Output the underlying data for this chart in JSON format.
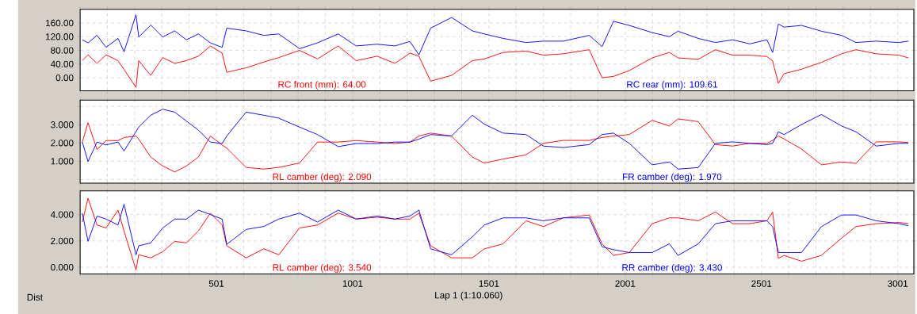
{
  "chart_data": [
    {
      "type": "line",
      "tick_labels": "y",
      "grid": true,
      "x": [
        9,
        30,
        63,
        96,
        140,
        162,
        206,
        216,
        260,
        304,
        348,
        391,
        435,
        479,
        522,
        539,
        610,
        675,
        730,
        806,
        872,
        948,
        1014,
        1091,
        1156,
        1211,
        1244,
        1287,
        1364,
        1440,
        1484,
        1553,
        1637,
        1701,
        1774,
        1869,
        1916,
        1958,
        2016,
        2100,
        2163,
        2195,
        2269,
        2332,
        2395,
        2458,
        2521,
        2542,
        2563,
        2584,
        2648,
        2721,
        2795,
        2848,
        2922,
        3006,
        3040
      ],
      "xlim": [
        1,
        3060
      ],
      "ylim": [
        -38,
        200
      ],
      "xticks": [
        {
          "value": 1,
          "label": null
        },
        {
          "value": 101,
          "label": null
        },
        {
          "value": 201,
          "label": null
        },
        {
          "value": 301,
          "label": null
        },
        {
          "value": 401,
          "label": null
        },
        501,
        {
          "value": 601,
          "label": null
        },
        {
          "value": 701,
          "label": null
        },
        {
          "value": 801,
          "label": null
        },
        {
          "value": 901,
          "label": null
        },
        1001,
        {
          "value": 1101,
          "label": null
        },
        {
          "value": 1201,
          "label": null
        },
        {
          "value": 1301,
          "label": null
        },
        {
          "value": 1401,
          "label": null
        },
        1501,
        {
          "value": 1601,
          "label": null
        },
        {
          "value": 1701,
          "label": null
        },
        {
          "value": 1801,
          "label": null
        },
        {
          "value": 1901,
          "label": null
        },
        2001,
        {
          "value": 2101,
          "label": null
        },
        {
          "value": 2201,
          "label": null
        },
        {
          "value": 2301,
          "label": null
        },
        {
          "value": 2401,
          "label": null
        },
        2501,
        {
          "value": 2601,
          "label": null
        },
        {
          "value": 2701,
          "label": null
        },
        {
          "value": 2801,
          "label": null
        },
        {
          "value": 2901,
          "label": null
        },
        3001
      ],
      "yticks": [
        {
          "value": 0,
          "label": "0.00"
        },
        {
          "value": 40,
          "label": "40.00"
        },
        {
          "value": 80,
          "label": "80.00"
        },
        {
          "value": 120,
          "label": "120.00"
        },
        {
          "value": 160,
          "label": "160.00"
        }
      ],
      "series": [
        {
          "name": "RC front (mm): 64.00",
          "color": "#ff0000",
          "values": [
            50,
            67,
            42,
            67,
            50,
            24,
            -28,
            50,
            7,
            59,
            42,
            50,
            63,
            93,
            72,
            16,
            29,
            46,
            59,
            80,
            55,
            93,
            50,
            63,
            42,
            72,
            63,
            -10,
            7,
            50,
            55,
            74,
            78,
            66,
            70,
            82,
            0,
            4,
            21,
            58,
            74,
            58,
            54,
            82,
            66,
            66,
            62,
            49,
            -16,
            12,
            25,
            45,
            70,
            82,
            70,
            66,
            58
          ]
        },
        {
          "name": "RC rear (mm): 109.61",
          "color": "#0000ff",
          "values": [
            111,
            102,
            124,
            89,
            115,
            76,
            184,
            119,
            154,
            119,
            137,
            111,
            128,
            102,
            89,
            145,
            137,
            124,
            128,
            85,
            102,
            128,
            93,
            98,
            93,
            106,
            67,
            145,
            176,
            137,
            128,
            115,
            103,
            107,
            107,
            124,
            91,
            165,
            153,
            132,
            120,
            136,
            115,
            103,
            111,
            99,
            111,
            74,
            157,
            148,
            153,
            136,
            124,
            103,
            107,
            103,
            107
          ]
        }
      ]
    },
    {
      "type": "line",
      "tick_labels": "y",
      "grid": true,
      "x": [
        9,
        30,
        63,
        96,
        140,
        162,
        206,
        216,
        260,
        304,
        348,
        391,
        435,
        479,
        522,
        539,
        610,
        675,
        730,
        806,
        872,
        948,
        1014,
        1091,
        1156,
        1211,
        1244,
        1287,
        1364,
        1440,
        1484,
        1553,
        1637,
        1701,
        1774,
        1869,
        1916,
        1958,
        2016,
        2100,
        2163,
        2195,
        2269,
        2332,
        2395,
        2458,
        2521,
        2542,
        2563,
        2584,
        2648,
        2721,
        2795,
        2848,
        2922,
        3006,
        3040
      ],
      "xlim": [
        1,
        3060
      ],
      "ylim": [
        -0.2,
        4.35
      ],
      "xticks": [
        {
          "value": 1,
          "label": null
        },
        {
          "value": 101,
          "label": null
        },
        {
          "value": 201,
          "label": null
        },
        {
          "value": 301,
          "label": null
        },
        {
          "value": 401,
          "label": null
        },
        501,
        {
          "value": 601,
          "label": null
        },
        {
          "value": 701,
          "label": null
        },
        {
          "value": 801,
          "label": null
        },
        {
          "value": 901,
          "label": null
        },
        1001,
        {
          "value": 1101,
          "label": null
        },
        {
          "value": 1201,
          "label": null
        },
        {
          "value": 1301,
          "label": null
        },
        {
          "value": 1401,
          "label": null
        },
        1501,
        {
          "value": 1601,
          "label": null
        },
        {
          "value": 1701,
          "label": null
        },
        {
          "value": 1801,
          "label": null
        },
        {
          "value": 1901,
          "label": null
        },
        2001,
        {
          "value": 2101,
          "label": null
        },
        {
          "value": 2201,
          "label": null
        },
        {
          "value": 2301,
          "label": null
        },
        {
          "value": 2401,
          "label": null
        },
        2501,
        {
          "value": 2601,
          "label": null
        },
        {
          "value": 2701,
          "label": null
        },
        {
          "value": 2801,
          "label": null
        },
        {
          "value": 2901,
          "label": null
        },
        3001
      ],
      "yticks": [
        {
          "value": 0,
          "label": null
        },
        {
          "value": 1,
          "label": "1.000"
        },
        {
          "value": 2,
          "label": "2.000"
        },
        {
          "value": 3,
          "label": "3.000"
        },
        {
          "value": 4,
          "label": null
        }
      ],
      "series": [
        {
          "name": "RL camber (deg): 2.090",
          "color": "#ff0000",
          "values": [
            2.05,
            3.11,
            1.64,
            2.13,
            2.13,
            2.3,
            2.38,
            2.21,
            1.23,
            0.74,
            0.41,
            0.74,
            1.23,
            2.38,
            1.89,
            1.72,
            0.66,
            0.57,
            0.66,
            0.9,
            2.05,
            2.05,
            2.13,
            2.05,
            1.97,
            2.05,
            2.38,
            2.54,
            2.38,
            1.23,
            0.9,
            1.12,
            1.35,
            1.98,
            2.14,
            2.14,
            2.3,
            2.38,
            2.46,
            3.24,
            2.93,
            3.32,
            3.17,
            1.91,
            1.83,
            1.98,
            1.98,
            2.14,
            2.38,
            2.22,
            1.67,
            0.8,
            0.96,
            0.88,
            2.06,
            2.06,
            2.02
          ]
        },
        {
          "name": "FR camber (deg): 1.970",
          "color": "#0000ff",
          "values": [
            2.05,
            0.98,
            2.05,
            1.89,
            2.05,
            1.56,
            2.62,
            2.87,
            3.52,
            3.85,
            3.69,
            3.2,
            2.7,
            2.05,
            1.97,
            2.38,
            3.69,
            3.52,
            3.36,
            2.87,
            2.46,
            1.8,
            1.97,
            1.97,
            2.05,
            2.05,
            2.21,
            2.46,
            2.38,
            3.52,
            3.03,
            2.54,
            2.46,
            1.83,
            1.75,
            1.91,
            2.46,
            2.54,
            1.98,
            0.8,
            0.96,
            0.57,
            0.65,
            1.98,
            2.06,
            1.98,
            1.91,
            1.98,
            2.61,
            2.46,
            3.01,
            3.56,
            2.93,
            2.61,
            1.83,
            1.98,
            1.98
          ]
        }
      ]
    },
    {
      "type": "line",
      "grid": true,
      "xlabel": "Lap 1 (1:10.060)",
      "annotations": [
        "Dist"
      ],
      "x": [
        9,
        30,
        63,
        96,
        140,
        162,
        206,
        216,
        260,
        304,
        348,
        391,
        435,
        479,
        522,
        539,
        610,
        675,
        730,
        806,
        872,
        948,
        1014,
        1091,
        1156,
        1211,
        1244,
        1287,
        1364,
        1440,
        1484,
        1553,
        1637,
        1701,
        1774,
        1869,
        1916,
        1958,
        2016,
        2100,
        2163,
        2195,
        2269,
        2332,
        2395,
        2458,
        2521,
        2542,
        2563,
        2584,
        2648,
        2721,
        2795,
        2848,
        2922,
        3006,
        3040
      ],
      "xlim": [
        1,
        3060
      ],
      "ylim": [
        -0.5,
        5.8
      ],
      "xticks": [
        {
          "value": 1,
          "label": null
        },
        {
          "value": 101,
          "label": null
        },
        {
          "value": 201,
          "label": null
        },
        {
          "value": 301,
          "label": null
        },
        {
          "value": 401,
          "label": null
        },
        501,
        {
          "value": 601,
          "label": null
        },
        {
          "value": 701,
          "label": null
        },
        {
          "value": 801,
          "label": null
        },
        {
          "value": 901,
          "label": null
        },
        1001,
        {
          "value": 1101,
          "label": null
        },
        {
          "value": 1201,
          "label": null
        },
        {
          "value": 1301,
          "label": null
        },
        {
          "value": 1401,
          "label": null
        },
        1501,
        {
          "value": 1601,
          "label": null
        },
        {
          "value": 1701,
          "label": null
        },
        {
          "value": 1801,
          "label": null
        },
        {
          "value": 1901,
          "label": null
        },
        2001,
        {
          "value": 2101,
          "label": null
        },
        {
          "value": 2201,
          "label": null
        },
        {
          "value": 2301,
          "label": null
        },
        {
          "value": 2401,
          "label": null
        },
        2501,
        {
          "value": 2601,
          "label": null
        },
        {
          "value": 2701,
          "label": null
        },
        {
          "value": 2801,
          "label": null
        },
        {
          "value": 2901,
          "label": null
        },
        3001
      ],
      "yticks": [
        {
          "value": 0,
          "label": "0.000"
        },
        {
          "value": 2,
          "label": "2.000"
        },
        {
          "value": 4,
          "label": "4.000"
        }
      ],
      "series": [
        {
          "name": "RL camber (deg): 3.540",
          "color": "#ff0000",
          "values": [
            3.43,
            5.24,
            3.21,
            2.98,
            4.34,
            2.76,
            -0.2,
            0.95,
            0.72,
            1.18,
            1.97,
            1.85,
            2.76,
            4.11,
            3.21,
            1.63,
            0.72,
            1.4,
            0.95,
            2.98,
            3.21,
            4.11,
            3.66,
            3.8,
            3.66,
            3.66,
            4.11,
            1.63,
            0.72,
            0.72,
            1.4,
            1.78,
            3.53,
            3.09,
            3.75,
            3.97,
            1.78,
            0.9,
            1.12,
            3.31,
            3.75,
            3.75,
            3.53,
            4.19,
            3.31,
            3.31,
            3.53,
            4.19,
            0.68,
            0.9,
            0.46,
            0.9,
            2.21,
            3.09,
            3.31,
            3.4,
            3.31
          ]
        },
        {
          "name": "RR camber (deg): 3.430",
          "color": "#0000ff",
          "values": [
            4.11,
            1.97,
            3.89,
            3.66,
            3.21,
            4.79,
            0.95,
            1.63,
            1.85,
            2.98,
            3.66,
            3.66,
            4.34,
            4.0,
            3.66,
            1.74,
            2.87,
            3.1,
            3.66,
            4.11,
            3.43,
            4.34,
            3.66,
            3.89,
            3.66,
            3.89,
            4.34,
            1.4,
            0.95,
            2.31,
            3.21,
            3.75,
            3.75,
            3.53,
            3.75,
            3.75,
            1.56,
            1.34,
            1.12,
            1.12,
            1.78,
            0.9,
            1.78,
            3.31,
            3.53,
            3.53,
            3.53,
            3.09,
            1.12,
            1.12,
            1.12,
            3.09,
            3.97,
            3.97,
            3.53,
            3.31,
            3.15
          ]
        }
      ]
    }
  ]
}
